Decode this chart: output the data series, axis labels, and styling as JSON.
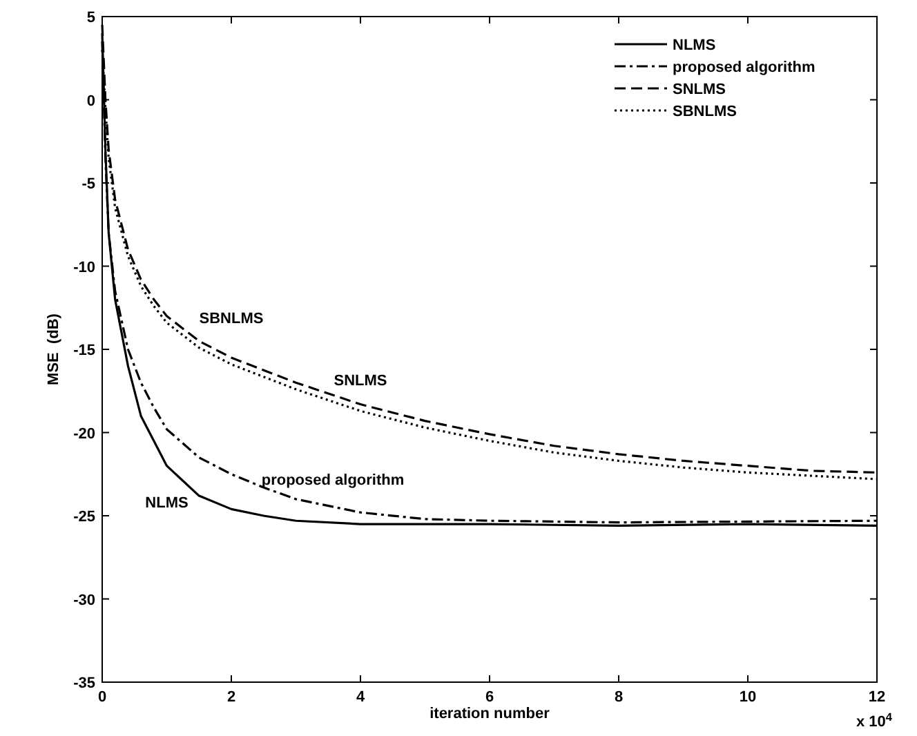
{
  "chart_data": {
    "type": "line",
    "xlabel": "iteration number",
    "ylabel": "MSE  (dB)",
    "xlim": [
      0,
      12
    ],
    "xticks": [
      0,
      2,
      4,
      6,
      8,
      10,
      12
    ],
    "ylim": [
      -35,
      5
    ],
    "yticks": [
      -35,
      -30,
      -25,
      -20,
      -15,
      -10,
      -5,
      0,
      5
    ],
    "legend": "top right",
    "series": [
      {
        "name": "NLMS",
        "color": "#000000",
        "line_style": "solid",
        "x": [
          0,
          0.05,
          0.1,
          0.2,
          0.4,
          0.6,
          0.8,
          1,
          1.5,
          2,
          2.5,
          3,
          4,
          6,
          8,
          10,
          12
        ],
        "values": [
          4,
          -3,
          -8,
          -12,
          -16,
          -19,
          -20.5,
          -22,
          -23.8,
          -24.6,
          -25,
          -25.3,
          -25.5,
          -25.5,
          -25.6,
          -25.5,
          -25.6
        ]
      },
      {
        "name": "proposed algorithm",
        "color": "#000000",
        "line_style": "dashdot",
        "x": [
          0,
          0.05,
          0.1,
          0.2,
          0.4,
          0.6,
          0.8,
          1,
          1.5,
          2,
          2.5,
          3,
          4,
          5,
          6,
          8,
          12
        ],
        "values": [
          3.5,
          -3.5,
          -8,
          -11.5,
          -15,
          -17,
          -18.5,
          -19.8,
          -21.5,
          -22.5,
          -23.3,
          -24,
          -24.8,
          -25.2,
          -25.3,
          -25.4,
          -25.3
        ]
      },
      {
        "name": "SNLMS",
        "color": "#000000",
        "line_style": "dashed",
        "x": [
          0,
          0.05,
          0.1,
          0.2,
          0.4,
          0.6,
          0.8,
          1,
          1.5,
          2,
          3,
          4,
          5,
          6,
          7,
          8,
          9,
          10,
          11,
          12
        ],
        "values": [
          4.5,
          0,
          -3,
          -6,
          -9,
          -10.8,
          -12,
          -13,
          -14.5,
          -15.5,
          -17,
          -18.3,
          -19.3,
          -20.1,
          -20.8,
          -21.3,
          -21.7,
          -22,
          -22.3,
          -22.4
        ]
      },
      {
        "name": "SBNLMS",
        "color": "#000000",
        "line_style": "dotted",
        "x": [
          0,
          0.05,
          0.1,
          0.2,
          0.4,
          0.6,
          0.8,
          1,
          1.5,
          2,
          3,
          4,
          5,
          6,
          7,
          8,
          9,
          10,
          11,
          12
        ],
        "values": [
          3,
          -0.5,
          -3.5,
          -6.5,
          -9.4,
          -11.2,
          -12.4,
          -13.4,
          -14.9,
          -15.9,
          -17.4,
          -18.7,
          -19.7,
          -20.5,
          -21.2,
          -21.7,
          -22.1,
          -22.4,
          -22.6,
          -22.8
        ]
      }
    ],
    "annotations": [
      "x 10$^{4}$"
    ]
  }
}
